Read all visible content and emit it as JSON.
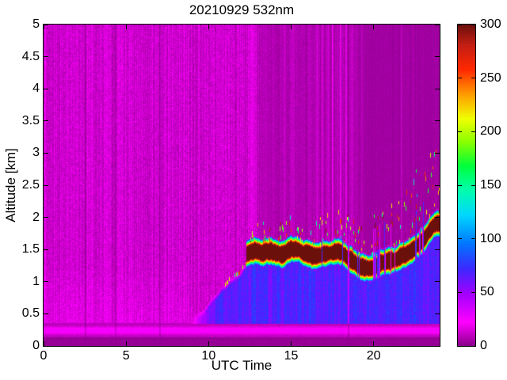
{
  "chart_data": {
    "type": "heatmap",
    "title": "20210929 532nm",
    "xlabel": "UTC Time",
    "ylabel": "Altitude [km]",
    "xlim": [
      0,
      24
    ],
    "ylim": [
      0,
      5
    ],
    "grid": false,
    "x_tick_values": [
      0,
      5,
      10,
      15,
      20
    ],
    "x_tick_labels": [
      "0",
      "5",
      "10",
      "15",
      "20"
    ],
    "y_tick_values": [
      0,
      0.5,
      1,
      1.5,
      2,
      2.5,
      3,
      3.5,
      4,
      4.5,
      5
    ],
    "y_tick_labels": [
      "0",
      "0.5",
      "1",
      "1.5",
      "2",
      "2.5",
      "3",
      "3.5",
      "4",
      "4.5",
      "5"
    ],
    "colorbar": {
      "min": 0,
      "max": 300,
      "tick_values": [
        0,
        50,
        100,
        150,
        200,
        250,
        300
      ],
      "tick_labels": [
        "0",
        "50",
        "100",
        "150",
        "200",
        "250",
        "300"
      ],
      "position": "right"
    },
    "colormap_stops": [
      [
        0,
        [
          138,
          0,
          138
        ]
      ],
      [
        22,
        [
          255,
          0,
          255
        ]
      ],
      [
        48,
        [
          165,
          0,
          255
        ]
      ],
      [
        72,
        [
          60,
          40,
          255
        ]
      ],
      [
        96,
        [
          0,
          120,
          255
        ]
      ],
      [
        122,
        [
          0,
          215,
          255
        ]
      ],
      [
        146,
        [
          0,
          255,
          170
        ]
      ],
      [
        168,
        [
          0,
          255,
          60
        ]
      ],
      [
        190,
        [
          135,
          255,
          0
        ]
      ],
      [
        212,
        [
          240,
          255,
          0
        ]
      ],
      [
        236,
        [
          255,
          150,
          0
        ]
      ],
      [
        258,
        [
          255,
          40,
          0
        ]
      ],
      [
        281,
        [
          195,
          30,
          20
        ]
      ],
      [
        300,
        [
          108,
          16,
          12
        ]
      ]
    ],
    "features": {
      "background_noise_value_range": [
        2,
        24
      ],
      "uniform_purple_region": {
        "start_utc": 12.4,
        "full_utc": 19.0
      },
      "surface_dark_band_top_km": 0.13,
      "surface_bright_band": {
        "center_km": 0.24,
        "peak_value": 23
      },
      "boundary_layer": {
        "start_utc": 8.8,
        "value_range": [
          45,
          90
        ],
        "top_km_points": [
          [
            8.8,
            0.4
          ],
          [
            9.6,
            0.55
          ],
          [
            10.3,
            0.75
          ],
          [
            11.0,
            0.95
          ],
          [
            11.6,
            1.08
          ],
          [
            12.3,
            1.25
          ]
        ]
      },
      "cloud_layer": {
        "start_utc": 12.3,
        "core_value": 300,
        "half_thickness_km": 0.09,
        "center_km_points": [
          [
            12.3,
            1.42
          ],
          [
            12.8,
            1.5
          ],
          [
            13.3,
            1.45
          ],
          [
            13.8,
            1.48
          ],
          [
            14.3,
            1.43
          ],
          [
            14.8,
            1.47
          ],
          [
            15.3,
            1.5
          ],
          [
            15.8,
            1.44
          ],
          [
            16.3,
            1.4
          ],
          [
            16.8,
            1.42
          ],
          [
            17.3,
            1.45
          ],
          [
            17.8,
            1.47
          ],
          [
            18.3,
            1.4
          ],
          [
            18.8,
            1.3
          ],
          [
            19.3,
            1.22
          ],
          [
            19.8,
            1.2
          ],
          [
            20.3,
            1.28
          ],
          [
            20.8,
            1.32
          ],
          [
            21.3,
            1.35
          ],
          [
            21.8,
            1.4
          ],
          [
            22.3,
            1.48
          ],
          [
            22.8,
            1.58
          ],
          [
            23.3,
            1.75
          ],
          [
            23.7,
            1.88
          ],
          [
            24,
            1.92
          ]
        ],
        "gap_probability": [
          {
            "from": 12.3,
            "to": 13.0,
            "p": 0.1
          },
          {
            "from": 13.0,
            "to": 16.0,
            "p": 0.12
          },
          {
            "from": 16.0,
            "to": 18.3,
            "p": 0.22
          },
          {
            "from": 18.3,
            "to": 21.3,
            "p": 0.42
          },
          {
            "from": 21.3,
            "to": 23.0,
            "p": 0.3
          },
          {
            "from": 23.0,
            "to": 24.0,
            "p": 0.27
          }
        ],
        "speck_probability": [
          {
            "from": 12.5,
            "to": 14.0,
            "p": 0.3
          },
          {
            "from": 14.0,
            "to": 18.0,
            "p": 0.35
          },
          {
            "from": 18.0,
            "to": 20.0,
            "p": 0.4
          },
          {
            "from": 20.0,
            "to": 24.0,
            "p": 0.55
          }
        ],
        "speck_spread_km": [
          {
            "from": 12.3,
            "to": 16.0,
            "s": 0.35
          },
          {
            "from": 16.0,
            "to": 20.0,
            "s": 0.5
          },
          {
            "from": 20.0,
            "to": 22.0,
            "s": 0.7
          },
          {
            "from": 22.0,
            "to": 24.0,
            "s": 1.1
          }
        ]
      },
      "artifact_dark_stripes": [
        {
          "utc": 2.54,
          "width_h": 0.12,
          "factor": 0.5
        },
        {
          "utc": 4.37,
          "width_h": 0.1,
          "factor": 0.55
        },
        {
          "utc": 7.06,
          "width_h": 0.1,
          "factor": 0.6
        },
        {
          "utc": 18.5,
          "width_h": 0.1,
          "factor": 0.55
        }
      ],
      "artifact_bright_stripes": [
        {
          "utc": 12.75,
          "width_h": 0.5,
          "strength": 4
        },
        {
          "utc": 14.6,
          "width_h": 0.2,
          "strength": 4
        },
        {
          "utc": 15.1,
          "width_h": 0.15,
          "strength": 4
        },
        {
          "utc": 16.55,
          "width_h": 0.12,
          "strength": 8
        },
        {
          "utc": 16.9,
          "width_h": 0.1,
          "strength": 9
        },
        {
          "utc": 17.2,
          "width_h": 0.12,
          "strength": 7
        },
        {
          "utc": 17.5,
          "width_h": 0.1,
          "strength": 11
        },
        {
          "utc": 18.0,
          "width_h": 0.12,
          "strength": 9
        },
        {
          "utc": 18.35,
          "width_h": 0.1,
          "strength": 7
        },
        {
          "utc": 18.7,
          "width_h": 0.15,
          "strength": 5
        },
        {
          "utc": 19.3,
          "width_h": 0.06,
          "strength": 6
        },
        {
          "utc": 21.7,
          "width_h": 0.08,
          "strength": 6
        },
        {
          "utc": 22.4,
          "width_h": 0.06,
          "strength": 5
        }
      ]
    }
  }
}
